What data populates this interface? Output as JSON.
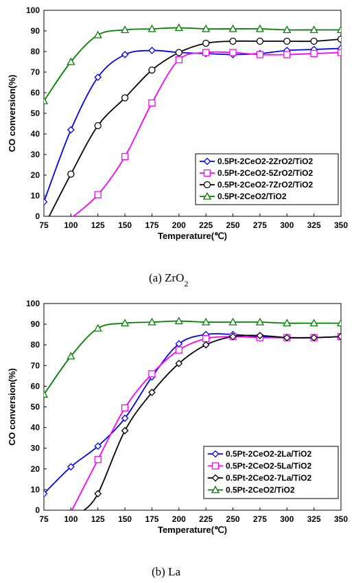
{
  "chart_data": [
    {
      "type": "line",
      "caption": "(a)  ZrO",
      "caption_sub": "2",
      "xlabel": "Temperature(℃)",
      "ylabel": "CO conversion(%)",
      "xlim": [
        75,
        350
      ],
      "ylim": [
        0,
        100
      ],
      "x_ticks": [
        75,
        100,
        125,
        150,
        175,
        200,
        225,
        250,
        275,
        300,
        325,
        350
      ],
      "y_ticks": [
        0,
        10,
        20,
        30,
        40,
        50,
        60,
        70,
        80,
        90,
        100
      ],
      "grid": false,
      "legend_position": "bottom-right",
      "series": [
        {
          "name": "0.5Pt-2CeO2-2ZrO2/TiO2",
          "color": "#0000ff",
          "marker": "diamond",
          "x": [
            75,
            100,
            125,
            150,
            175,
            200,
            225,
            250,
            275,
            300,
            325,
            350
          ],
          "values": [
            7,
            42,
            67.5,
            78.5,
            80.5,
            79.5,
            79,
            78.5,
            79,
            80.5,
            81,
            81.5
          ]
        },
        {
          "name": "0.5Pt-2CeO2-5ZrO2/TiO2",
          "color": "#ff00ff",
          "marker": "square",
          "x": [
            100,
            125,
            150,
            175,
            200,
            225,
            250,
            275,
            300,
            325,
            350
          ],
          "values": [
            -1,
            10.5,
            29,
            55,
            76,
            79.5,
            79.5,
            78.5,
            78.5,
            79,
            79.5
          ]
        },
        {
          "name": "0.5Pt-2CeO2-7ZrO2/TiO2",
          "color": "#000000",
          "marker": "circle",
          "x": [
            75,
            100,
            125,
            150,
            175,
            200,
            225,
            250,
            275,
            300,
            325,
            350
          ],
          "values": [
            -5,
            20.5,
            44,
            57.5,
            71,
            79.5,
            84,
            85,
            85,
            85,
            85,
            86
          ]
        },
        {
          "name": "0.5Pt-2CeO2/TiO2",
          "color": "#008000",
          "marker": "triangle",
          "x": [
            75,
            100,
            125,
            150,
            175,
            200,
            225,
            250,
            275,
            300,
            325,
            350
          ],
          "values": [
            56,
            75,
            88,
            90.5,
            91,
            91.5,
            91,
            91,
            91,
            90.5,
            90.5,
            90.5
          ]
        }
      ]
    },
    {
      "type": "line",
      "caption": "(b)  La",
      "caption_sub": "",
      "xlabel": "Temperature(℃)",
      "ylabel": "CO conversion(%)",
      "xlim": [
        75,
        350
      ],
      "ylim": [
        0,
        100
      ],
      "x_ticks": [
        75,
        100,
        125,
        150,
        175,
        200,
        225,
        250,
        275,
        300,
        325,
        350
      ],
      "y_ticks": [
        0,
        10,
        20,
        30,
        40,
        50,
        60,
        70,
        80,
        90,
        100
      ],
      "grid": false,
      "legend_position": "bottom-right",
      "series": [
        {
          "name": "0.5Pt-2CeO2-2La/TiO2",
          "color": "#0000ff",
          "marker": "diamond",
          "x": [
            75,
            100,
            125,
            150,
            175,
            200,
            225,
            250,
            275,
            300,
            325,
            350
          ],
          "values": [
            8,
            21,
            31,
            44.5,
            64.5,
            80.5,
            85,
            85,
            84,
            83.5,
            83.5,
            84
          ]
        },
        {
          "name": "0.5Pt-2CeO2-5La/TiO2",
          "color": "#ff00ff",
          "marker": "square",
          "x": [
            100,
            125,
            150,
            175,
            200,
            225,
            250,
            275,
            300,
            325,
            350
          ],
          "values": [
            -1,
            24.5,
            49.5,
            66,
            77.5,
            83,
            84,
            83.5,
            83.5,
            83.5,
            84
          ]
        },
        {
          "name": "0.5Pt-2CeO2-7La/TiO2",
          "color": "#000000",
          "marker": "diamond",
          "x": [
            110,
            125,
            150,
            175,
            200,
            225,
            250,
            275,
            300,
            325,
            350
          ],
          "values": [
            -1,
            8,
            38.5,
            57,
            71,
            80,
            84,
            84.5,
            83.5,
            83.5,
            84
          ]
        },
        {
          "name": "0.5Pt-2CeO2/TiO2",
          "color": "#008000",
          "marker": "triangle",
          "x": [
            75,
            100,
            125,
            150,
            175,
            200,
            225,
            250,
            275,
            300,
            325,
            350
          ],
          "values": [
            56,
            74.5,
            88,
            90.5,
            91,
            91.5,
            91,
            91,
            91,
            90.5,
            90.5,
            90.5
          ]
        }
      ]
    }
  ]
}
